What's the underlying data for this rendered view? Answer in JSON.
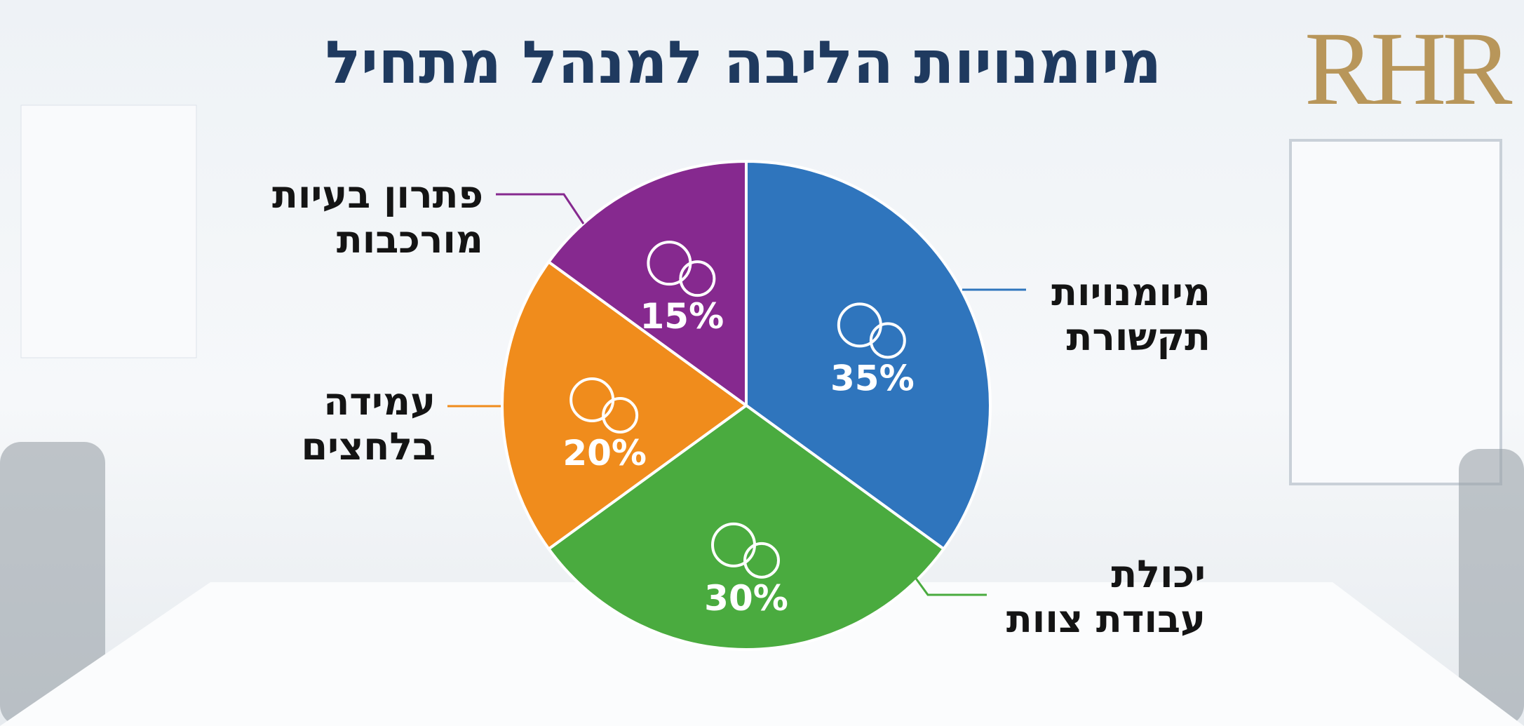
{
  "logo": "RHR",
  "chart_data": {
    "type": "pie",
    "title": "מיומנויות הליבה למנהל מתחיל",
    "categories": [
      "מיומנויות\nתקשורת",
      "יכולת\nעבודת צוות",
      "עמידה\nבלחצים",
      "פתרון בעיות\nמורכבות"
    ],
    "values": [
      35,
      30,
      20,
      15
    ],
    "value_labels": [
      "35%",
      "30%",
      "20%",
      "15%"
    ],
    "colors": [
      "#2f75bd",
      "#4aab3f",
      "#f08c1c",
      "#86298f"
    ]
  }
}
